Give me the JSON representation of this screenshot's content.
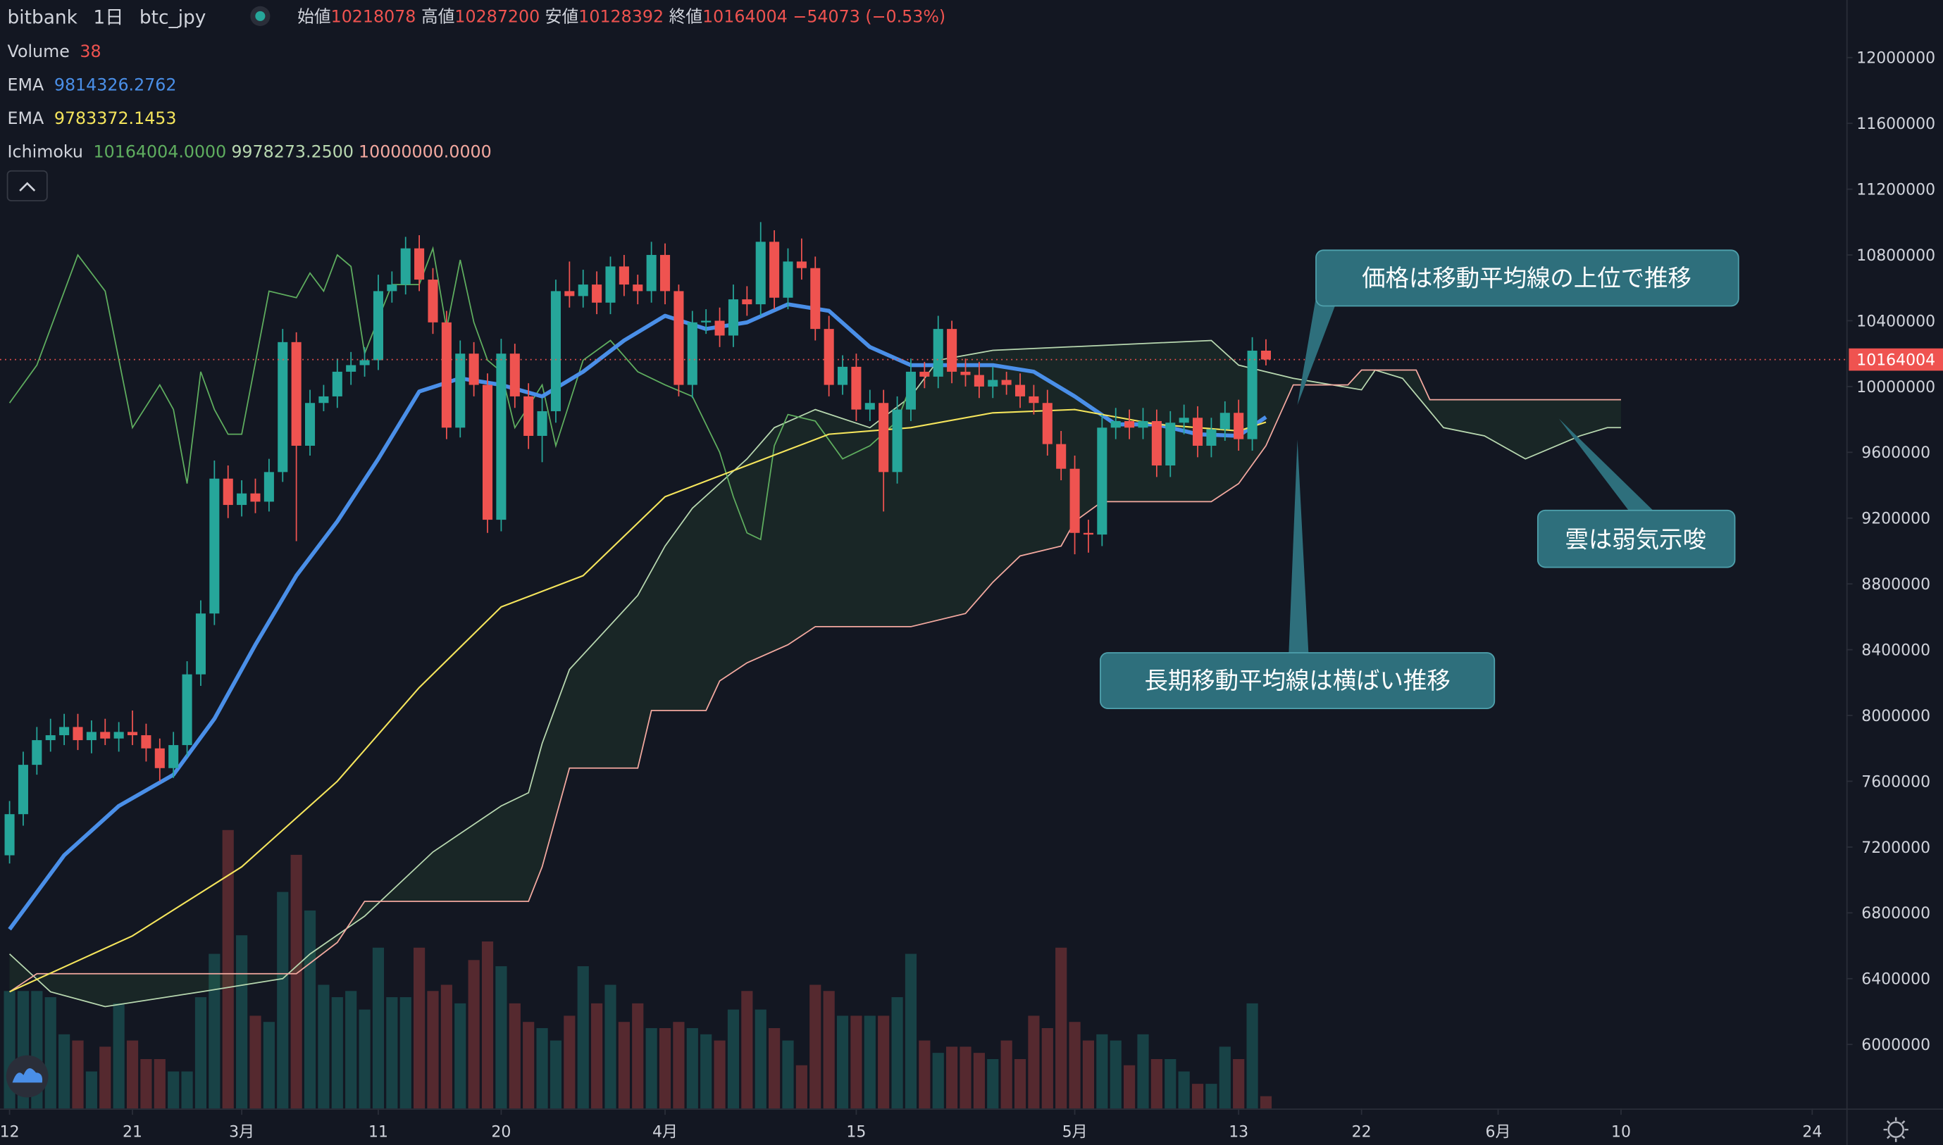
{
  "chart_data": {
    "type": "candlestick",
    "header": {
      "exchange": "bitbank",
      "interval": "1日",
      "symbol": "btc_jpy",
      "ohlc_labels": [
        "始値",
        "高値",
        "安値",
        "終値"
      ],
      "change": "−54073 (−0.53%)"
    },
    "up_color": "#26a69a",
    "down_color": "#ef5350",
    "x": [
      0,
      1,
      2,
      3,
      4,
      5,
      6,
      7,
      8,
      9,
      10,
      11,
      12,
      13,
      14,
      15,
      16,
      17,
      18,
      19,
      20,
      21,
      22,
      23,
      24,
      25,
      26,
      27,
      28,
      29,
      30,
      31,
      32,
      33,
      34,
      35,
      36,
      37,
      38,
      39,
      40,
      41,
      42,
      43,
      44,
      45,
      46,
      47,
      48,
      49,
      50,
      51,
      52,
      53,
      54,
      55,
      56,
      57,
      58,
      59,
      60,
      61,
      62,
      63,
      64,
      65,
      66,
      67,
      68,
      69,
      70,
      71,
      72,
      73,
      74,
      75,
      76,
      77,
      78,
      79,
      80,
      81,
      82,
      83,
      84,
      85,
      86,
      87,
      88,
      89,
      90,
      91,
      92
    ],
    "open": [
      7150000,
      7400000,
      7700000,
      7850000,
      7880000,
      7930000,
      7850000,
      7900000,
      7860000,
      7900000,
      7880000,
      7800000,
      7680000,
      7820000,
      8250000,
      8620000,
      9440000,
      9280000,
      9350000,
      9300000,
      9480000,
      10270000,
      9640000,
      9900000,
      9940000,
      10090000,
      10130000,
      10160000,
      10580000,
      10620000,
      10840000,
      10650000,
      10390000,
      9750000,
      10200000,
      10010000,
      9190000,
      10200000,
      9940000,
      9700000,
      9850000,
      10580000,
      10550000,
      10620000,
      10510000,
      10730000,
      10620000,
      10580000,
      10800000,
      10580000,
      10010000,
      10390000,
      10400000,
      10310000,
      10530000,
      10500000,
      10880000,
      10540000,
      10760000,
      10720000,
      10350000,
      10010000,
      10120000,
      9860000,
      9900000,
      9480000,
      9860000,
      10090000,
      10060000,
      10350000,
      10090000,
      10070000,
      10000000,
      10040000,
      10010000,
      9940000,
      9900000,
      9650000,
      9500000,
      9110000,
      9100000,
      9750000,
      9790000,
      9750000,
      9790000,
      9520000,
      9780000,
      9810000,
      9640000,
      9740000,
      9840000,
      9680000,
      10218078
    ],
    "high": [
      7480000,
      7780000,
      7930000,
      7980000,
      8010000,
      8010000,
      7970000,
      7980000,
      7960000,
      8030000,
      7950000,
      7860000,
      7900000,
      8330000,
      8700000,
      9550000,
      9520000,
      9430000,
      9440000,
      9560000,
      10350000,
      10330000,
      9980000,
      10010000,
      10170000,
      10210000,
      10240000,
      10680000,
      10700000,
      10910000,
      10920000,
      10720000,
      10460000,
      10280000,
      10270000,
      10080000,
      10290000,
      10260000,
      10020000,
      9930000,
      10650000,
      10760000,
      10710000,
      10700000,
      10790000,
      10800000,
      10680000,
      10880000,
      10870000,
      10620000,
      10460000,
      10470000,
      10480000,
      10620000,
      10610000,
      11000000,
      10950000,
      10840000,
      10900000,
      10790000,
      10430000,
      10190000,
      10200000,
      9980000,
      9980000,
      9940000,
      10170000,
      10150000,
      10430000,
      10400000,
      10170000,
      10150000,
      10120000,
      10090000,
      10080000,
      10010000,
      9980000,
      9730000,
      9580000,
      9190000,
      9830000,
      9870000,
      9860000,
      9870000,
      9860000,
      9850000,
      9890000,
      9880000,
      9810000,
      9910000,
      9920000,
      10300000,
      10287200
    ],
    "low": [
      7100000,
      7330000,
      7640000,
      7780000,
      7820000,
      7790000,
      7770000,
      7820000,
      7780000,
      7820000,
      7720000,
      7600000,
      7620000,
      7750000,
      8180000,
      8550000,
      9200000,
      9210000,
      9230000,
      9240000,
      9420000,
      9060000,
      9580000,
      9850000,
      9870000,
      10010000,
      10060000,
      10100000,
      10510000,
      10560000,
      10580000,
      10320000,
      9680000,
      9690000,
      9940000,
      9110000,
      9120000,
      9870000,
      9620000,
      9540000,
      9780000,
      10480000,
      10480000,
      10440000,
      10440000,
      10550000,
      10500000,
      10510000,
      10500000,
      9940000,
      9930000,
      10320000,
      10240000,
      10240000,
      10430000,
      10430000,
      10470000,
      10470000,
      10650000,
      10280000,
      9940000,
      9950000,
      9790000,
      9790000,
      9240000,
      9410000,
      9790000,
      9990000,
      9990000,
      10020000,
      10000000,
      9930000,
      9930000,
      9950000,
      9870000,
      9830000,
      9580000,
      9430000,
      8980000,
      8990000,
      9030000,
      9680000,
      9680000,
      9680000,
      9450000,
      9450000,
      9710000,
      9570000,
      9570000,
      9670000,
      9610000,
      9610000,
      10128392
    ],
    "close": [
      7400000,
      7700000,
      7850000,
      7880000,
      7930000,
      7850000,
      7900000,
      7860000,
      7900000,
      7880000,
      7800000,
      7680000,
      7820000,
      8250000,
      8620000,
      9440000,
      9280000,
      9350000,
      9300000,
      9480000,
      10270000,
      9640000,
      9900000,
      9940000,
      10090000,
      10130000,
      10160000,
      10580000,
      10620000,
      10840000,
      10650000,
      10390000,
      9750000,
      10200000,
      10010000,
      9190000,
      10200000,
      9940000,
      9700000,
      9850000,
      10580000,
      10550000,
      10620000,
      10510000,
      10730000,
      10620000,
      10580000,
      10800000,
      10580000,
      10010000,
      10390000,
      10400000,
      10310000,
      10530000,
      10500000,
      10880000,
      10540000,
      10760000,
      10720000,
      10350000,
      10010000,
      10120000,
      9860000,
      9900000,
      9480000,
      9860000,
      10090000,
      10060000,
      10350000,
      10090000,
      10070000,
      10000000,
      10040000,
      10010000,
      9940000,
      9900000,
      9650000,
      9500000,
      9110000,
      9100000,
      9750000,
      9790000,
      9750000,
      9790000,
      9520000,
      9780000,
      9810000,
      9640000,
      9740000,
      9840000,
      9680000,
      10218078,
      10164004
    ],
    "volume": {
      "name": "Volume",
      "ylim": [
        0,
        1000
      ],
      "values": [
        361,
        361,
        361,
        342,
        228,
        209,
        114,
        190,
        323,
        209,
        152,
        152,
        114,
        114,
        342,
        475,
        855,
        532,
        285,
        266,
        665,
        779,
        608,
        380,
        342,
        361,
        304,
        494,
        342,
        342,
        494,
        361,
        380,
        323,
        456,
        513,
        437,
        323,
        266,
        247,
        209,
        285,
        437,
        323,
        380,
        266,
        323,
        247,
        247,
        266,
        247,
        228,
        209,
        304,
        361,
        304,
        247,
        209,
        133,
        380,
        361,
        285,
        285,
        285,
        285,
        342,
        475,
        209,
        171,
        190,
        190,
        171,
        152,
        209,
        152,
        285,
        247,
        494,
        266,
        209,
        228,
        209,
        133,
        228,
        152,
        152,
        114,
        76,
        76,
        190,
        152,
        323,
        38
      ]
    },
    "lines": [
      {
        "name": "EMA",
        "color": "#4a8fe8",
        "width": 3.2,
        "x": [
          0,
          4,
          8,
          12,
          15,
          18,
          21,
          24,
          27,
          30,
          33,
          36,
          39,
          42,
          45,
          48,
          51,
          54,
          57,
          60,
          63,
          66,
          69,
          72,
          75,
          78,
          81,
          84,
          87,
          90,
          92
        ],
        "values": [
          6700000,
          7150000,
          7450000,
          7640000,
          7980000,
          8430000,
          8850000,
          9180000,
          9560000,
          9970000,
          10050000,
          10010000,
          9940000,
          10090000,
          10280000,
          10430000,
          10350000,
          10390000,
          10500000,
          10460000,
          10240000,
          10130000,
          10130000,
          10130000,
          10090000,
          9940000,
          9770000,
          9770000,
          9710000,
          9700000,
          9814326.2762
        ]
      },
      {
        "name": "EMA",
        "color": "#f5e55c",
        "width": 1.2,
        "x": [
          0,
          9,
          17,
          24,
          30,
          36,
          42,
          48,
          54,
          60,
          66,
          72,
          78,
          84,
          90,
          92
        ],
        "values": [
          6320000,
          6660000,
          7080000,
          7600000,
          8170000,
          8660000,
          8850000,
          9330000,
          9520000,
          9710000,
          9750000,
          9840000,
          9860000,
          9770000,
          9730000,
          9783372.1453
        ]
      }
    ],
    "ichimoku": {
      "name": "Ichimoku",
      "legend_values": [
        {
          "text": "10164004.0000",
          "color": "#5fae5f"
        },
        {
          "text": "9978273.2500",
          "color": "#b8d8b0"
        },
        {
          "text": "10000000.0000",
          "color": "#f4a9a0"
        }
      ],
      "cloud_color": "rgba(76,175,80,0.10)",
      "lagging": {
        "color": "#5fae5f",
        "x": [
          0,
          2,
          5,
          7,
          9,
          11,
          12,
          13,
          14,
          15,
          16,
          17,
          19,
          21,
          22,
          23,
          24,
          25,
          26,
          28,
          30,
          31,
          32,
          33,
          34,
          35,
          36,
          37,
          39,
          40,
          42,
          44,
          46,
          48,
          50,
          52,
          53,
          54,
          55,
          56,
          57,
          59,
          61,
          63,
          65,
          66
        ],
        "values": [
          9900000,
          10130000,
          10800000,
          10580000,
          9750000,
          10010000,
          9860000,
          9410000,
          10090000,
          9860000,
          9710000,
          9710000,
          10580000,
          10540000,
          10690000,
          10580000,
          10800000,
          10730000,
          10200000,
          10620000,
          10620000,
          10840000,
          10350000,
          10770000,
          10390000,
          10160000,
          10090000,
          9750000,
          10010000,
          9640000,
          10160000,
          10280000,
          10090000,
          10010000,
          9940000,
          9600000,
          9330000,
          9110000,
          9070000,
          9640000,
          9830000,
          9790000,
          9560000,
          9640000,
          9790000,
          10010000
        ]
      },
      "span_a": {
        "color": "#b8d8b0",
        "x": [
          0,
          3,
          7,
          14,
          20,
          22,
          26,
          31,
          36,
          38,
          39,
          41,
          46,
          48,
          50,
          54,
          56,
          59,
          63,
          66,
          68,
          72,
          88,
          90,
          94,
          99,
          100,
          102,
          105,
          108,
          111,
          115,
          117,
          118
        ],
        "values": [
          6550000,
          6320000,
          6230000,
          6320000,
          6400000,
          6550000,
          6780000,
          7170000,
          7450000,
          7530000,
          7830000,
          8280000,
          8730000,
          9030000,
          9260000,
          9560000,
          9750000,
          9860000,
          9750000,
          9940000,
          10160000,
          10220000,
          10280000,
          10130000,
          10050000,
          9980000,
          10100000,
          10050000,
          9750000,
          9700000,
          9560000,
          9700000,
          9750000,
          9750000
        ]
      },
      "span_b": {
        "color": "#f4a9a0",
        "x": [
          0,
          2,
          21,
          24,
          26,
          38,
          39,
          41,
          46,
          47,
          51,
          52,
          54,
          57,
          59,
          66,
          70,
          72,
          74,
          77,
          78,
          80,
          88,
          90,
          92,
          94,
          98,
          99,
          103,
          104,
          118
        ],
        "values": [
          6320000,
          6430000,
          6430000,
          6620000,
          6870000,
          6870000,
          7080000,
          7680000,
          7680000,
          8030000,
          8030000,
          8210000,
          8320000,
          8430000,
          8540000,
          8540000,
          8620000,
          8810000,
          8970000,
          9030000,
          9180000,
          9300000,
          9300000,
          9410000,
          9640000,
          10010000,
          10010000,
          10100000,
          10100000,
          9920000,
          9920000
        ]
      }
    },
    "xlim": [
      -0.7,
      134.5
    ],
    "xticks": [
      {
        "value": 0,
        "label": "12"
      },
      {
        "value": 9,
        "label": "21"
      },
      {
        "value": 17,
        "label": "3月"
      },
      {
        "value": 27,
        "label": "11"
      },
      {
        "value": 36,
        "label": "20"
      },
      {
        "value": 48,
        "label": "4月"
      },
      {
        "value": 62,
        "label": "15"
      },
      {
        "value": 78,
        "label": "5月"
      },
      {
        "value": 90,
        "label": "13"
      },
      {
        "value": 99,
        "label": "22"
      },
      {
        "value": 109,
        "label": "6月"
      },
      {
        "value": 118,
        "label": "10"
      },
      {
        "value": 132,
        "label": "24"
      }
    ],
    "ylim": [
      5610000,
      12350000
    ],
    "yticks": [
      6000000,
      6400000,
      6800000,
      7200000,
      7600000,
      8000000,
      8400000,
      8800000,
      9200000,
      9600000,
      10000000,
      10400000,
      10800000,
      11200000,
      11600000,
      12000000
    ],
    "grid": false,
    "annotations": [
      {
        "text": "価格は移動平均線の上位で推移"
      },
      {
        "text": "雲は弱気示唆"
      },
      {
        "text": "長期移動平均線は横ばい推移"
      }
    ]
  }
}
